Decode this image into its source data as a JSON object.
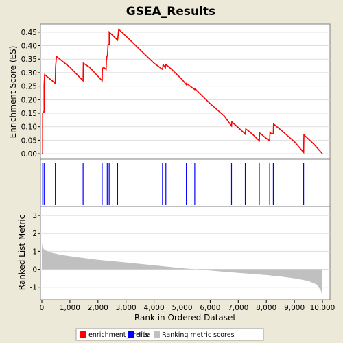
{
  "chart_data": {
    "type": "line",
    "title": "GSEA_Results",
    "xlabel": "Rank in Ordered Dataset",
    "xlim": [
      0,
      10000
    ],
    "x_ticks": [
      0,
      1000,
      2000,
      3000,
      4000,
      5000,
      6000,
      7000,
      8000,
      9000,
      10000
    ],
    "x_tick_labels": [
      "0",
      "1,000",
      "2,000",
      "3,000",
      "4,000",
      "5,000",
      "6,000",
      "7,000",
      "8,000",
      "9,000",
      "10,000"
    ],
    "enrichment_panel": {
      "ylabel": "Enrichment Score (ES)",
      "ylim": [
        -0.02,
        0.48
      ],
      "y_ticks": [
        0.0,
        0.05,
        0.1,
        0.15,
        0.2,
        0.25,
        0.3,
        0.35,
        0.4,
        0.45
      ],
      "y_tick_labels": [
        "0.00",
        "0.05",
        "0.10",
        "0.15",
        "0.20",
        "0.25",
        "0.30",
        "0.35",
        "0.40",
        "0.45"
      ],
      "series": [
        {
          "name": "enrichment_profile",
          "color": "#ff0000",
          "x": [
            0,
            30,
            30,
            60,
            80,
            80,
            100,
            450,
            480,
            490,
            520,
            1000,
            1470,
            1480,
            1700,
            2150,
            2160,
            2200,
            2290,
            2300,
            2320,
            2340,
            2360,
            2400,
            2400,
            2700,
            2740,
            3000,
            3500,
            4000,
            4300,
            4320,
            4400,
            4420,
            4600,
            5000,
            5150,
            5160,
            5450,
            5460,
            6000,
            6500,
            6760,
            6770,
            7000,
            7250,
            7270,
            7500,
            7750,
            7760,
            8000,
            8120,
            8130,
            8200,
            8250,
            8260,
            8500,
            9000,
            9330,
            9340,
            9700,
            10000
          ],
          "y": [
            0.0,
            0.0,
            0.15,
            0.155,
            0.155,
            0.255,
            0.293,
            0.263,
            0.26,
            0.32,
            0.36,
            0.32,
            0.27,
            0.335,
            0.32,
            0.27,
            0.315,
            0.32,
            0.312,
            0.345,
            0.36,
            0.365,
            0.403,
            0.405,
            0.45,
            0.42,
            0.46,
            0.435,
            0.385,
            0.335,
            0.312,
            0.33,
            0.318,
            0.33,
            0.315,
            0.275,
            0.255,
            0.26,
            0.237,
            0.24,
            0.185,
            0.14,
            0.103,
            0.118,
            0.097,
            0.073,
            0.092,
            0.073,
            0.048,
            0.077,
            0.057,
            0.048,
            0.079,
            0.073,
            0.075,
            0.11,
            0.09,
            0.045,
            0.005,
            0.07,
            0.035,
            0.0
          ]
        }
      ]
    },
    "hits_panel": {
      "name": "Hits",
      "color": "#0000ff",
      "positions": [
        30,
        80,
        480,
        1470,
        2150,
        2290,
        2340,
        2400,
        2700,
        4300,
        4420,
        5150,
        5450,
        6760,
        7250,
        7750,
        8120,
        8250,
        9330
      ]
    },
    "ranked_metric_panel": {
      "name": "Ranking metric scores",
      "color": "#c0c0c0",
      "ylabel": "Ranked List Metric",
      "ylim": [
        -1.7,
        3.5
      ],
      "y_ticks": [
        -1,
        0,
        1,
        2,
        3
      ],
      "y_tick_labels": [
        "-1",
        "0",
        "1",
        "2",
        "3"
      ],
      "x": [
        0,
        20,
        80,
        200,
        400,
        700,
        1000,
        1500,
        2000,
        3000,
        4000,
        5000,
        5500,
        6000,
        7000,
        8000,
        8500,
        9000,
        9500,
        9800,
        9950,
        10000
      ],
      "y": [
        1.45,
        1.25,
        1.1,
        1.0,
        0.9,
        0.8,
        0.73,
        0.63,
        0.53,
        0.38,
        0.22,
        0.06,
        0.0,
        -0.07,
        -0.2,
        -0.32,
        -0.4,
        -0.5,
        -0.65,
        -0.85,
        -1.2,
        -1.55
      ]
    },
    "legend": {
      "placement": "bottom",
      "items": [
        {
          "label": "enrichment_profile",
          "color": "#ff0000"
        },
        {
          "label": "Hits",
          "color": "#0000ff"
        },
        {
          "label": "Ranking metric scores",
          "color": "#c0c0c0"
        }
      ]
    }
  }
}
